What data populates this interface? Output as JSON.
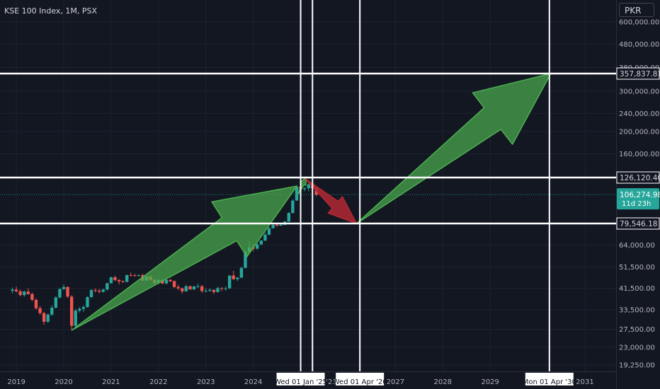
{
  "chart_data": {
    "type": "candlestick",
    "title": "KSE 100 Index, 1M, PSX",
    "currency": "PKR",
    "y_scale": "log",
    "y_ticks": [
      "600,000.00",
      "480,000.00",
      "380,000.00",
      "300,000.00",
      "240,000.00",
      "200,000.00",
      "160,000.00",
      "64,000.00",
      "51,500.00",
      "41,500.00",
      "33,500.00",
      "27,500.00",
      "23,000.00",
      "19,250.00"
    ],
    "x_ticks": [
      "2019",
      "2020",
      "2021",
      "2022",
      "2023",
      "2024",
      "2027",
      "2028",
      "2029",
      "2031"
    ],
    "x_clipped_ticks": [
      "'25",
      "'25"
    ],
    "price_labels": [
      {
        "value": 357837.81,
        "text": "357,837.81"
      },
      {
        "value": 126120.4,
        "text": "126,120.40"
      },
      {
        "value": 79546.18,
        "text": "79,546.18"
      }
    ],
    "last_price": {
      "value": 106274.98,
      "text": "106,274.98",
      "countdown": "11d 23h",
      "color": "#26a69a"
    },
    "date_labels": [
      {
        "date": "2025-01-01",
        "text": "Wed 01 Jan '25"
      },
      {
        "date": "2026-04-01",
        "text": "Wed 01 Apr '26"
      },
      {
        "date": "2030-04-01",
        "text": "Mon 01 Apr '30"
      }
    ],
    "colors": {
      "up": "#26a69a",
      "down": "#ef5350",
      "bull_arrow": "#4caf50",
      "bear_arrow": "#b22833",
      "lines": "#ffffff"
    },
    "candles": [
      [
        2018.917,
        40500,
        41800,
        39500,
        41000
      ],
      [
        2019.0,
        41000,
        42200,
        39800,
        40300
      ],
      [
        2019.083,
        40300,
        40900,
        38300,
        38800
      ],
      [
        2019.167,
        38800,
        40600,
        38200,
        40200
      ],
      [
        2019.25,
        40200,
        41500,
        38900,
        39200
      ],
      [
        2019.333,
        39200,
        39800,
        36500,
        37000
      ],
      [
        2019.417,
        37000,
        37500,
        33500,
        34000
      ],
      [
        2019.5,
        34000,
        34800,
        31800,
        32400
      ],
      [
        2019.583,
        32400,
        32800,
        28800,
        29700
      ],
      [
        2019.667,
        29700,
        32300,
        29300,
        31900
      ],
      [
        2019.75,
        31900,
        35000,
        31500,
        34200
      ],
      [
        2019.833,
        34200,
        38300,
        33900,
        37900
      ],
      [
        2019.917,
        37900,
        41600,
        37500,
        41200
      ],
      [
        2020.0,
        41200,
        43200,
        40900,
        42100
      ],
      [
        2020.083,
        42100,
        42300,
        37800,
        38200
      ],
      [
        2020.167,
        38200,
        38800,
        27200,
        28500
      ],
      [
        2020.25,
        28500,
        33800,
        28000,
        33200
      ],
      [
        2020.333,
        33200,
        34400,
        32600,
        33800
      ],
      [
        2020.417,
        33800,
        35000,
        32800,
        34400
      ],
      [
        2020.5,
        34400,
        38400,
        34200,
        38000
      ],
      [
        2020.583,
        38000,
        41200,
        37800,
        40800
      ],
      [
        2020.667,
        40800,
        41500,
        39800,
        40500
      ],
      [
        2020.75,
        40500,
        41300,
        39500,
        40100
      ],
      [
        2020.833,
        40100,
        41400,
        39700,
        41000
      ],
      [
        2020.917,
        41000,
        43900,
        40600,
        43700
      ],
      [
        2021.0,
        43700,
        46700,
        43600,
        46400
      ],
      [
        2021.083,
        46400,
        47200,
        44600,
        45100
      ],
      [
        2021.167,
        45100,
        45600,
        43200,
        44500
      ],
      [
        2021.25,
        44500,
        45100,
        43800,
        44300
      ],
      [
        2021.333,
        44300,
        47700,
        44100,
        47400
      ],
      [
        2021.417,
        47400,
        48600,
        46800,
        47300
      ],
      [
        2021.5,
        47300,
        48000,
        46700,
        47100
      ],
      [
        2021.583,
        47100,
        47800,
        46600,
        47400
      ],
      [
        2021.667,
        47400,
        48100,
        44700,
        44900
      ],
      [
        2021.75,
        44900,
        47100,
        44600,
        46800
      ],
      [
        2021.833,
        46800,
        47200,
        44800,
        45200
      ],
      [
        2021.917,
        45200,
        45700,
        42800,
        43800
      ],
      [
        2022.0,
        43800,
        45800,
        43200,
        45100
      ],
      [
        2022.083,
        45100,
        45600,
        43300,
        43600
      ],
      [
        2022.167,
        43600,
        45600,
        43200,
        45200
      ],
      [
        2022.25,
        45200,
        45600,
        44200,
        44600
      ],
      [
        2022.333,
        44600,
        45000,
        41600,
        42100
      ],
      [
        2022.417,
        42100,
        43000,
        40800,
        41500
      ],
      [
        2022.5,
        41500,
        41800,
        39400,
        40300
      ],
      [
        2022.583,
        40300,
        43000,
        40200,
        42400
      ],
      [
        2022.667,
        42400,
        42700,
        40800,
        41100
      ],
      [
        2022.75,
        41100,
        42600,
        40800,
        42300
      ],
      [
        2022.833,
        42300,
        43400,
        41800,
        42400
      ],
      [
        2022.917,
        42400,
        42900,
        39600,
        40400
      ],
      [
        2023.0,
        40400,
        41600,
        39800,
        40500
      ],
      [
        2023.083,
        40500,
        41500,
        40100,
        40900
      ],
      [
        2023.167,
        40900,
        41000,
        39200,
        40000
      ],
      [
        2023.25,
        40000,
        42200,
        39800,
        41600
      ],
      [
        2023.333,
        41600,
        42000,
        40400,
        41400
      ],
      [
        2023.417,
        41400,
        42300,
        40600,
        41500
      ],
      [
        2023.5,
        41500,
        47300,
        41300,
        47200
      ],
      [
        2023.583,
        47200,
        49500,
        45200,
        45500
      ],
      [
        2023.667,
        45500,
        46500,
        44700,
        46200
      ],
      [
        2023.75,
        46200,
        51400,
        46000,
        51000
      ],
      [
        2023.833,
        51000,
        60700,
        50700,
        59800
      ],
      [
        2023.917,
        59800,
        66600,
        59600,
        62500
      ],
      [
        2024.0,
        62500,
        64900,
        60300,
        61800
      ],
      [
        2024.083,
        61800,
        65500,
        61100,
        64500
      ],
      [
        2024.167,
        64500,
        67300,
        64100,
        67000
      ],
      [
        2024.25,
        67000,
        72700,
        66800,
        71100
      ],
      [
        2024.333,
        71100,
        76800,
        70800,
        75900
      ],
      [
        2024.417,
        75900,
        79400,
        75600,
        78400
      ],
      [
        2024.5,
        78400,
        79200,
        76900,
        77900
      ],
      [
        2024.583,
        77900,
        79400,
        77500,
        78500
      ],
      [
        2024.667,
        78500,
        81400,
        78200,
        81100
      ],
      [
        2024.75,
        81100,
        89200,
        80900,
        88400
      ],
      [
        2024.833,
        88400,
        101200,
        88000,
        100100
      ],
      [
        2024.917,
        100100,
        117000,
        99800,
        115100
      ],
      [
        2025.0,
        115100,
        116500,
        109500,
        112200
      ],
      [
        2025.083,
        112200,
        114500,
        109800,
        113300
      ],
      [
        2025.167,
        113300,
        119000,
        110000,
        117800
      ],
      [
        2025.25,
        117800,
        119800,
        112000,
        113300
      ],
      [
        2025.333,
        113300,
        114200,
        104500,
        106275
      ]
    ],
    "arrows": [
      {
        "color": "bull",
        "tail": [
          2020.17,
          27300
        ],
        "tip": [
          2024.92,
          115800
        ]
      },
      {
        "color": "bull",
        "tail": [
          2024.95,
          107000
        ],
        "tip": [
          2025.12,
          127000
        ]
      },
      {
        "color": "bear",
        "tail": [
          2025.1,
          124500
        ],
        "tip": [
          2026.18,
          79546
        ]
      },
      {
        "color": "bull",
        "tail": [
          2026.18,
          79546
        ],
        "tip": [
          2030.28,
          357837
        ]
      }
    ],
    "vertical_lines": [
      2025.0,
      2025.25,
      2026.25,
      2030.25
    ],
    "horizontal_lines": [
      357837.81,
      126120.4,
      79546.18
    ]
  }
}
